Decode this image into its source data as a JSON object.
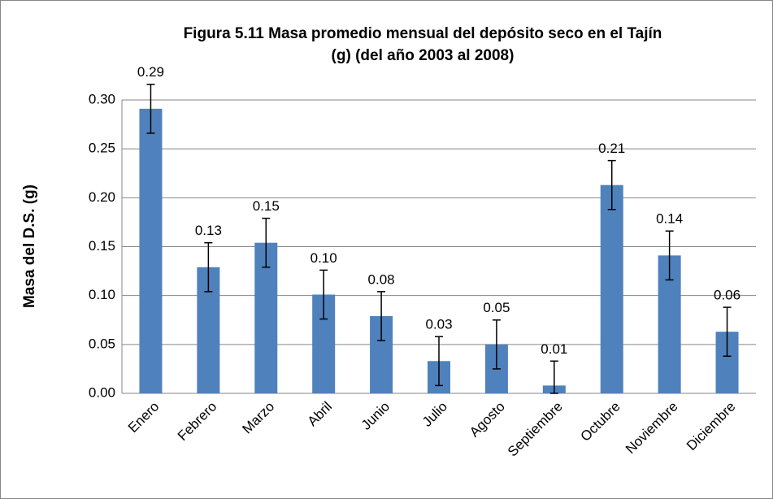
{
  "chart_data": {
    "type": "bar",
    "title": [
      "Figura 5.11 Masa promedio mensual del depósito seco en el Tajín",
      "(g) (del año 2003 al 2008)"
    ],
    "y_label": "Masa del D.S. (g)",
    "categories": [
      "Enero",
      "Febrero",
      "Marzo",
      "Abril",
      "Junio",
      "Julio",
      "Agosto",
      "Septiembre",
      "Octubre",
      "Noviembre",
      "Diciembre"
    ],
    "values": [
      0.291,
      0.129,
      0.154,
      0.101,
      0.079,
      0.033,
      0.05,
      0.008,
      0.213,
      0.141,
      0.063
    ],
    "value_labels": [
      "0.29",
      "0.13",
      "0.15",
      "0.10",
      "0.08",
      "0.03",
      "0.05",
      "0.01",
      "0.21",
      "0.14",
      "0.06"
    ],
    "errors": [
      0.025,
      0.025,
      0.025,
      0.025,
      0.025,
      0.025,
      0.025,
      0.025,
      0.025,
      0.025,
      0.025
    ],
    "color": "#4f81bd",
    "ylim": [
      0,
      0.3
    ],
    "yticks": [
      {
        "value": 0,
        "label": "0.00"
      },
      0.05,
      {
        "value": 0.1,
        "label": "0.10"
      },
      0.15,
      {
        "value": 0.2,
        "label": "0.20"
      },
      0.25,
      {
        "value": 0.3,
        "label": "0.30"
      }
    ],
    "grid": true
  }
}
